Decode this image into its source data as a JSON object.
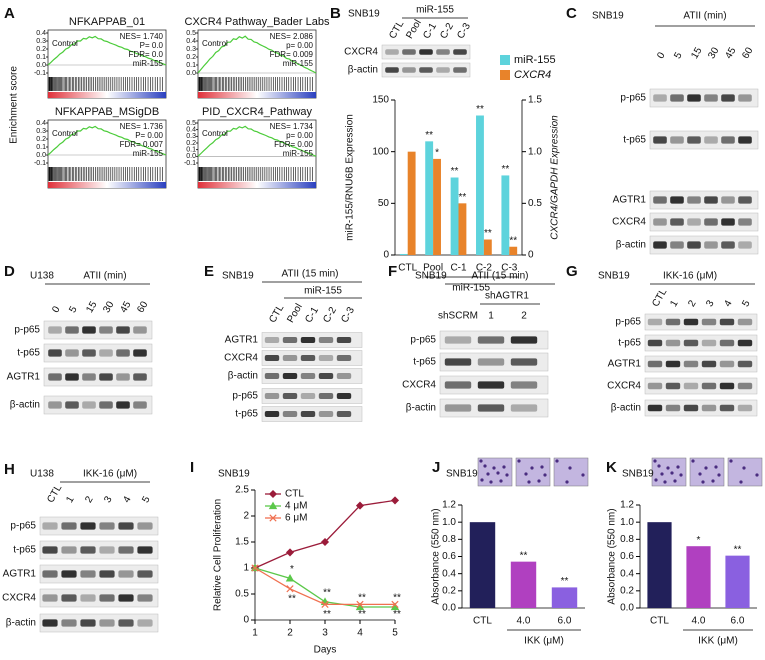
{
  "panels": {
    "A": {
      "label": "A",
      "ylabel": "Enrichment score",
      "plots": [
        {
          "title": "NFKAPPAB_01",
          "stats": [
            "NES= 1.740",
            "P= 0.0",
            "FDR= 0.0"
          ],
          "left": "Control",
          "right": "miR-155",
          "yticks": [
            "0.4",
            "0.3",
            "0.2",
            "0.1",
            "0.0",
            "-0.1"
          ]
        },
        {
          "title": "CXCR4 Pathway_Bader Labs",
          "stats": [
            "NES= 2.086",
            "p= 0.00",
            "FDR= 0.009"
          ],
          "left": "Control",
          "right": "miR-155",
          "yticks": [
            "0.5",
            "0.4",
            "0.3",
            "0.2",
            "0.1",
            "0.0"
          ]
        },
        {
          "title": "NFKAPPAB_MSigDB",
          "stats": [
            "NES= 1.736",
            "P= 0.00",
            "FDR= 0.007"
          ],
          "left": "Control",
          "right": "miR-155",
          "yticks": [
            "0.4",
            "0.3",
            "0.2",
            "0.1",
            "0.0",
            "-0.1"
          ]
        },
        {
          "title": "PID_CXCR4_Pathway",
          "stats": [
            "NES= 1.734",
            "p= 0.00",
            "FDR= 0.00"
          ],
          "left": "Control",
          "right": "miR-155",
          "yticks": [
            "0.5",
            "0.4",
            "0.3",
            "0.2",
            "0.1",
            "0.0",
            "-0.1"
          ]
        }
      ]
    },
    "B": {
      "label": "B",
      "cell": "SNB19",
      "group": "miR-155",
      "lanes": [
        "CTL",
        "Pool",
        "C-1",
        "C-2",
        "C-3"
      ],
      "rows": [
        "CXCR4",
        "β-actin"
      ]
    },
    "C": {
      "label": "C",
      "cell": "SNB19",
      "treatment": "ATII (min)",
      "lanes": [
        "0",
        "5",
        "15",
        "30",
        "45",
        "60"
      ],
      "rows": [
        "p-p65",
        "t-p65",
        "AGTR1",
        "CXCR4",
        "β-actin"
      ]
    },
    "D": {
      "label": "D",
      "cell": "U138",
      "treatment": "ATII (min)",
      "lanes": [
        "0",
        "5",
        "15",
        "30",
        "45",
        "60"
      ],
      "rows": [
        "p-p65",
        "t-p65",
        "AGTR1",
        "β-actin"
      ]
    },
    "E": {
      "label": "E",
      "cell": "SNB19",
      "treatment": "ATII (15 min)",
      "group": "miR-155",
      "lanes": [
        "CTL",
        "Pool",
        "C-1",
        "C-2",
        "C-3"
      ],
      "rows": [
        "AGTR1",
        "CXCR4",
        "β-actin",
        "p-p65",
        "t-p65"
      ]
    },
    "F": {
      "label": "F",
      "cell": "SNB19",
      "treatment": "ATII (15 min)",
      "group": "shAGTR1",
      "lanes": [
        "shSCRM",
        "1",
        "2"
      ],
      "rows": [
        "p-p65",
        "t-p65",
        "CXCR4",
        "β-actin"
      ]
    },
    "G": {
      "label": "G",
      "cell": "SNB19",
      "treatment": "IKK-16 (μM)",
      "lanes": [
        "CTL",
        "1",
        "2",
        "3",
        "4",
        "5"
      ],
      "rows": [
        "p-p65",
        "t-p65",
        "AGTR1",
        "CXCR4",
        "β-actin"
      ]
    },
    "H": {
      "label": "H",
      "cell": "U138",
      "treatment": "IKK-16 (μM)",
      "lanes": [
        "CTL",
        "1",
        "2",
        "3",
        "4",
        "5"
      ],
      "rows": [
        "p-p65",
        "t-p65",
        "AGTR1",
        "CXCR4",
        "β-actin"
      ]
    },
    "I": {
      "label": "I"
    },
    "J": {
      "label": "J"
    },
    "K": {
      "label": "K"
    }
  },
  "chart_data": [
    {
      "type": "bar",
      "categories": [
        "CTL",
        "Pool",
        "C-1",
        "C-2",
        "C-3"
      ],
      "group_label": "miR-155",
      "ylabel": "miR-155/RNU6B Expression",
      "y2label": "CXCR4/GAPDH Expression",
      "ylim": [
        0,
        150
      ],
      "yticks": [
        0,
        50,
        100,
        150
      ],
      "y2lim": [
        0,
        1.5
      ],
      "y2ticks": [
        0,
        0.5,
        {
          "value": 1,
          "label": "1.0"
        },
        1.5
      ],
      "legend": "top-right",
      "series": [
        {
          "name": "miR-155",
          "color": "#5dd3dc",
          "values": [
            1,
            110,
            75,
            135,
            77
          ],
          "significance": [
            null,
            "**",
            "**",
            "**",
            "**"
          ]
        },
        {
          "name": "CXCR4",
          "color": "#e8832a",
          "axis": "y2",
          "values": [
            1.0,
            0.93,
            0.5,
            0.15,
            0.08
          ],
          "significance": [
            null,
            "*",
            "**",
            "**",
            "**"
          ]
        }
      ]
    },
    {
      "type": "line",
      "title": "SNB19",
      "x": [
        1,
        2,
        3,
        4,
        5
      ],
      "xlim": [
        1,
        5
      ],
      "xticks": [
        1,
        2,
        3,
        4,
        5
      ],
      "ylim": [
        0,
        2.5
      ],
      "yticks": [
        0,
        0.5,
        1,
        1.5,
        2,
        2.5
      ],
      "xlabel": "Days",
      "ylabel": "Relative Cell Proliferation",
      "legend": "top-left",
      "series": [
        {
          "name": "CTL",
          "color": "#9b1c3a",
          "marker": "diamond",
          "values": [
            1,
            1.3,
            1.5,
            2.2,
            2.3
          ]
        },
        {
          "name": "4 μM",
          "color": "#5cc84a",
          "marker": "triangle",
          "values": [
            1,
            0.8,
            0.35,
            0.25,
            0.25
          ],
          "significance": [
            null,
            "*",
            "**",
            "**",
            "**"
          ]
        },
        {
          "name": "6 μM",
          "color": "#f07050",
          "marker": "x",
          "values": [
            1,
            0.6,
            0.3,
            0.3,
            0.3
          ],
          "significance": [
            null,
            "**",
            "**",
            "**",
            "**"
          ]
        }
      ]
    },
    {
      "type": "bar",
      "title": "SNB19",
      "categories": [
        "CTL",
        "4.0",
        "6.0"
      ],
      "group_label": "IKK (μM)",
      "values": [
        1.0,
        0.54,
        0.24
      ],
      "colors": [
        "#22205a",
        "#b040c0",
        "#8a60e0"
      ],
      "significance": [
        null,
        "**",
        "**"
      ],
      "ylabel": "Absorbance (550 nm)",
      "ylim": [
        0,
        1.2
      ],
      "yticks": [
        {
          "value": 0,
          "label": "0.0"
        },
        0.2,
        0.4,
        0.6,
        0.8,
        {
          "value": 1,
          "label": "1.0"
        },
        1.2
      ]
    },
    {
      "type": "bar",
      "title": "SNB19",
      "categories": [
        "CTL",
        "4.0",
        "6.0"
      ],
      "group_label": "IKK (μM)",
      "values": [
        1.0,
        0.72,
        0.61
      ],
      "colors": [
        "#22205a",
        "#b040c0",
        "#8a60e0"
      ],
      "significance": [
        null,
        "*",
        "**"
      ],
      "ylabel": "Absorbance (550 nm)",
      "ylim": [
        0,
        1.2
      ],
      "yticks": [
        {
          "value": 0,
          "label": "0.0"
        },
        0.2,
        0.4,
        0.6,
        0.8,
        {
          "value": 1,
          "label": "1.0"
        },
        1.2
      ]
    }
  ]
}
